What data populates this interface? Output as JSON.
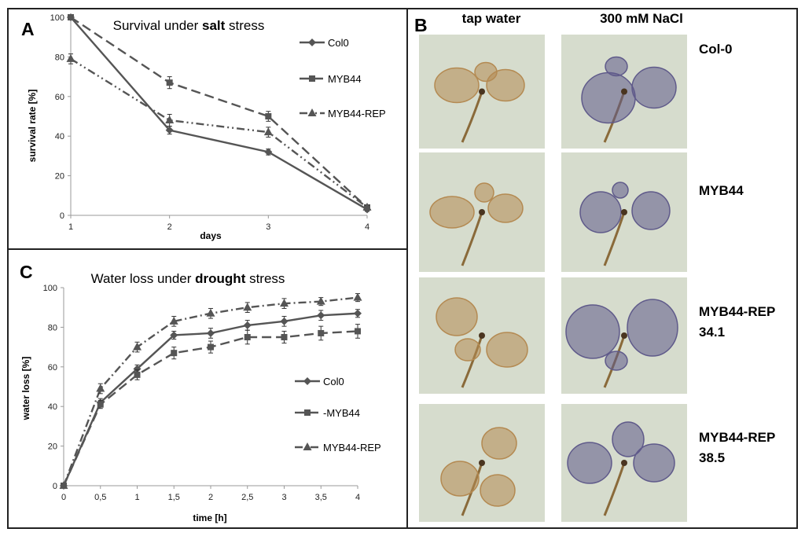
{
  "chart_data": [
    {
      "panel": "A",
      "type": "line",
      "title_pre": "Survival under ",
      "title_bold": "salt",
      "title_post": " stress",
      "xlabel": "days",
      "ylabel": "survival rate [%]",
      "x": [
        1,
        2,
        3,
        4
      ],
      "xticks": [
        "1",
        "2",
        "3",
        "4"
      ],
      "yticks": [
        "0",
        "20",
        "40",
        "60",
        "80",
        "100"
      ],
      "ylim": [
        0,
        100
      ],
      "series": [
        {
          "name": "Col0",
          "marker": "diamond",
          "dash": "solid",
          "values": [
            100,
            43,
            32,
            3
          ],
          "errors": [
            0,
            2,
            1.5,
            1
          ]
        },
        {
          "name": "MYB44",
          "marker": "square",
          "dash": "dash",
          "values": [
            100,
            67,
            50,
            4
          ],
          "errors": [
            0,
            3,
            2.5,
            1
          ]
        },
        {
          "name": "MYB44-REP",
          "marker": "triangle",
          "dash": "dashdotdot",
          "values": [
            79,
            48,
            42,
            4
          ],
          "errors": [
            2.5,
            3,
            2.5,
            1
          ]
        }
      ]
    },
    {
      "panel": "C",
      "type": "line",
      "title_pre": "Water loss under ",
      "title_bold": "drought",
      "title_post": " stress",
      "xlabel": "time [h]",
      "ylabel": "water loss [%]",
      "x": [
        0,
        0.5,
        1,
        1.5,
        2,
        2.5,
        3,
        3.5,
        4
      ],
      "xticks": [
        "0",
        "0,5",
        "1",
        "1,5",
        "2",
        "2,5",
        "3",
        "3,5",
        "4"
      ],
      "yticks": [
        "0",
        "20",
        "40",
        "60",
        "80",
        "100"
      ],
      "ylim": [
        0,
        100
      ],
      "series": [
        {
          "name": "Col0",
          "legend_label": "Col0",
          "marker": "diamond",
          "dash": "solid",
          "values": [
            0,
            42,
            59,
            76,
            77,
            81,
            83,
            86,
            87
          ],
          "errors": [
            0,
            2,
            2,
            2,
            2.5,
            2.5,
            2.5,
            2.5,
            2
          ]
        },
        {
          "name": "MYB44",
          "legend_label": "-MYB44",
          "marker": "square",
          "dash": "dash",
          "values": [
            0,
            41,
            56,
            67,
            70,
            75,
            75,
            77,
            78
          ],
          "errors": [
            0,
            2,
            2.5,
            3,
            3,
            3.5,
            3,
            3.5,
            3.5
          ]
        },
        {
          "name": "MYB44-REP",
          "legend_label": "MYB44-REP",
          "marker": "triangle",
          "dash": "dashdot",
          "values": [
            0,
            49,
            70,
            83,
            87,
            90,
            92,
            93,
            95
          ],
          "errors": [
            0,
            2.5,
            2.5,
            2.5,
            2.5,
            2.5,
            2.5,
            2,
            2
          ]
        }
      ]
    }
  ],
  "panels": {
    "a_label": "A",
    "b_label": "B",
    "c_label": "C"
  },
  "photo_grid": {
    "column_headers": [
      "tap water",
      "300 mM NaCl"
    ],
    "row_labels": [
      {
        "line1": "Col-0",
        "line2": ""
      },
      {
        "line1": "MYB44",
        "line2": ""
      },
      {
        "line1": "MYB44-REP",
        "line2": "34.1"
      },
      {
        "line1": "MYB44-REP",
        "line2": "38.5"
      }
    ]
  },
  "colors": {
    "series": "#555555",
    "background_photo": "#d6dccd",
    "plant_tap": "#b48a52",
    "plant_salt": "#5f5a8a"
  }
}
